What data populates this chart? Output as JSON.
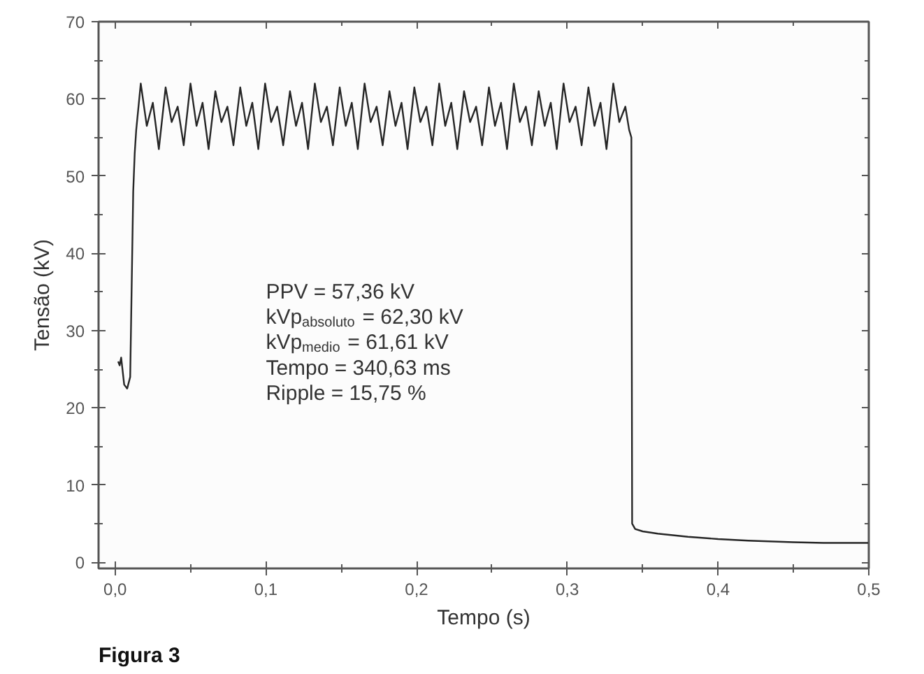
{
  "chart_data": {
    "type": "line",
    "xlabel": "Tempo (s)",
    "ylabel": "Tensão (kV)",
    "xlim": [
      -0.011,
      0.5
    ],
    "ylim": [
      -0.8,
      70
    ],
    "xticks": [
      {
        "value": 0,
        "label": "0,0"
      },
      {
        "value": 0.1,
        "label": "0,1"
      },
      {
        "value": 0.2,
        "label": "0,2"
      },
      {
        "value": 0.3,
        "label": "0,3"
      },
      {
        "value": 0.4,
        "label": "0,4"
      },
      {
        "value": 0.5,
        "label": "0,5"
      }
    ],
    "yticks": [
      0,
      10,
      20,
      30,
      40,
      50,
      60,
      70
    ],
    "grid": false,
    "marker": "none",
    "line_style": "solid",
    "annotations": [
      "PPV = 57,36 kV",
      "kVp$_{absoluto}$ = 62,30 kV",
      "kVp$_{medio}$ = 61,61 kV",
      "Tempo = 340,63 ms",
      "Ripple = 15,75 %",
      "Figura 3"
    ],
    "series": [
      {
        "color": "#262626",
        "x": [
          0.002,
          0.003,
          0.004,
          0.006,
          0.008,
          0.01,
          0.011,
          0.012,
          0.013,
          0.014,
          0.015,
          0.017,
          0.021,
          0.025,
          0.029,
          0.0335,
          0.0375,
          0.0415,
          0.0455,
          0.05,
          0.054,
          0.058,
          0.062,
          0.0665,
          0.0705,
          0.0745,
          0.0785,
          0.083,
          0.087,
          0.091,
          0.095,
          0.0995,
          0.1035,
          0.1075,
          0.1115,
          0.116,
          0.12,
          0.124,
          0.128,
          0.1325,
          0.1365,
          0.1405,
          0.1445,
          0.149,
          0.153,
          0.157,
          0.161,
          0.1655,
          0.1695,
          0.1735,
          0.1775,
          0.182,
          0.186,
          0.19,
          0.194,
          0.1985,
          0.2025,
          0.2065,
          0.2105,
          0.215,
          0.219,
          0.223,
          0.227,
          0.2315,
          0.2355,
          0.2395,
          0.2435,
          0.248,
          0.252,
          0.256,
          0.26,
          0.2645,
          0.2685,
          0.2725,
          0.2765,
          0.281,
          0.285,
          0.289,
          0.293,
          0.2975,
          0.3015,
          0.3055,
          0.3095,
          0.314,
          0.318,
          0.322,
          0.326,
          0.3305,
          0.3345,
          0.3385,
          0.341,
          0.3425,
          0.343,
          0.345,
          0.35,
          0.36,
          0.38,
          0.4,
          0.42,
          0.45,
          0.47,
          0.5
        ],
        "values": [
          26,
          25.5,
          26.5,
          23,
          22.5,
          24,
          36,
          48,
          53,
          56,
          58,
          62,
          56.5,
          59.5,
          53.5,
          61.5,
          57,
          59,
          54,
          62,
          56.5,
          59.5,
          53.5,
          61,
          57,
          59,
          54,
          61.5,
          56.5,
          59.5,
          53.5,
          62,
          57,
          59,
          54,
          61,
          56.5,
          59.5,
          53.5,
          62,
          57,
          59,
          54,
          61.5,
          56.5,
          59.5,
          53.5,
          62,
          57,
          59,
          54,
          61,
          56.5,
          59.5,
          53.5,
          61.5,
          57,
          59,
          54,
          62,
          56.5,
          59.5,
          53.5,
          61,
          57,
          59,
          54,
          61.5,
          56.5,
          59.5,
          53.5,
          62,
          57,
          59,
          54,
          61,
          56.5,
          59.5,
          53.5,
          62,
          57,
          59,
          54,
          61.5,
          56.5,
          59.5,
          53.5,
          62,
          57,
          59,
          56,
          55,
          5,
          4.3,
          4,
          3.7,
          3.3,
          3.0,
          2.8,
          2.6,
          2.5,
          2.5
        ]
      }
    ]
  }
}
